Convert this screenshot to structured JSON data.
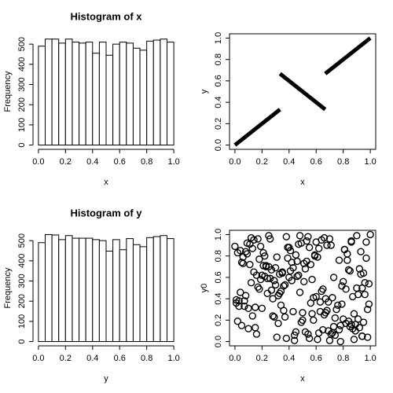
{
  "chart_data": [
    {
      "type": "histogram",
      "title": "Histogram of x",
      "xlabel": "x",
      "ylabel": "Frequency",
      "bins": [
        0,
        0.05,
        0.1,
        0.15,
        0.2,
        0.25,
        0.3,
        0.35,
        0.4,
        0.45,
        0.5,
        0.55,
        0.6,
        0.65,
        0.7,
        0.75,
        0.8,
        0.85,
        0.9,
        0.95,
        1
      ],
      "counts": [
        490,
        525,
        525,
        505,
        525,
        510,
        505,
        510,
        455,
        510,
        445,
        500,
        510,
        505,
        480,
        470,
        515,
        520,
        525,
        510
      ],
      "xlim": [
        -0.04,
        1.04
      ],
      "ylim": [
        -21.2,
        551.2
      ],
      "xticks": [
        {
          "value": 0,
          "label": "0.0"
        },
        0.2,
        0.4,
        0.6,
        0.8,
        {
          "value": 1,
          "label": "1.0"
        }
      ],
      "yticks": [
        0,
        100,
        200,
        300,
        400,
        500
      ],
      "color": "#ffffff"
    },
    {
      "type": "line",
      "xlabel": "x",
      "ylabel": "y",
      "x": [
        0,
        0.333,
        null,
        0.333,
        0.667,
        null,
        0.667,
        1
      ],
      "y": [
        0,
        0.333,
        null,
        0.667,
        0.333,
        null,
        0.667,
        1
      ],
      "xlim": [
        -0.04,
        1.04
      ],
      "ylim": [
        -0.04,
        1.04
      ],
      "xticks": [
        {
          "value": 0,
          "label": "0.0"
        },
        0.2,
        0.4,
        0.6,
        0.8,
        {
          "value": 1,
          "label": "1.0"
        }
      ],
      "yticks": [
        {
          "value": 0,
          "label": "0.0"
        },
        0.2,
        0.4,
        0.6,
        0.8,
        {
          "value": 1,
          "label": "1.0"
        }
      ],
      "color": "#000000"
    },
    {
      "type": "histogram",
      "title": "Histogram of y",
      "xlabel": "y",
      "ylabel": "Frequency",
      "bins": [
        0,
        0.05,
        0.1,
        0.15,
        0.2,
        0.25,
        0.3,
        0.35,
        0.4,
        0.45,
        0.5,
        0.55,
        0.6,
        0.65,
        0.7,
        0.75,
        0.8,
        0.85,
        0.9,
        0.95,
        1
      ],
      "counts": [
        490,
        530,
        528,
        505,
        525,
        512,
        512,
        512,
        505,
        500,
        448,
        505,
        455,
        510,
        480,
        470,
        515,
        520,
        525,
        510
      ],
      "xlim": [
        -0.04,
        1.04
      ],
      "ylim": [
        -21.2,
        551.2
      ],
      "xticks": [
        {
          "value": 0,
          "label": "0.0"
        },
        0.2,
        0.4,
        0.6,
        0.8,
        {
          "value": 1,
          "label": "1.0"
        }
      ],
      "yticks": [
        0,
        100,
        200,
        300,
        400,
        500
      ],
      "color": "#ffffff"
    },
    {
      "type": "scatter",
      "xlabel": "x",
      "ylabel": "y0",
      "x": [
        0.12,
        0.87,
        0.45,
        0.03,
        0.66,
        0.31,
        0.92,
        0.58,
        0.19,
        0.74,
        0.4,
        0.05,
        0.83,
        0.27,
        0.61,
        0.97,
        0.36,
        0.14,
        0.52,
        0.79,
        0.08,
        0.69,
        0.23,
        0.95,
        0.48,
        0.33,
        0.71,
        0.16,
        0.88,
        0.55,
        0.01,
        0.42,
        0.77,
        0.29,
        0.64,
        0.1,
        0.9,
        0.5,
        0.21,
        0.85,
        0.38,
        0.6,
        0.06,
        0.73,
        0.47,
        0.99,
        0.25,
        0.57,
        0.13,
        0.81,
        0.34,
        0.68,
        0.02,
        0.93,
        0.44,
        0.18,
        0.76,
        0.54,
        0.3,
        0.89,
        0.11,
        0.63,
        0.41,
        0.96,
        0.22,
        0.7,
        0.49,
        0.07,
        0.84,
        0.37,
        0.59,
        0.15,
        0.8,
        0.26,
        0.98,
        0.46,
        0.04,
        0.72,
        0.35,
        0.62,
        0.91,
        0.17,
        0.53,
        0.28,
        0.86,
        0.43,
        0.09,
        0.67,
        0.24,
        0.94,
        0.51,
        0.32,
        0.78,
        0.0,
        0.56,
        0.2,
        0.82,
        0.39,
        0.65,
        1.0,
        0.57,
        0.21,
        0.94,
        0.4,
        0.08,
        0.73,
        0.32,
        0.86,
        0.15,
        0.61,
        0.99,
        0.45,
        0.27,
        0.8,
        0.04,
        0.67,
        0.38,
        0.92,
        0.19,
        0.53,
        0.75,
        0.11,
        0.48,
        0.88,
        0.3,
        0.63,
        0.02,
        0.84,
        0.36,
        0.7,
        0.16,
        0.95,
        0.43,
        0.59,
        0.24,
        0.78,
        0.06,
        0.51,
        0.9,
        0.34,
        0.65,
        0.13,
        0.82,
        0.47,
        0.28,
        0.97,
        0.55,
        0.09,
        0.72,
        0.41,
        0.85,
        0.26,
        0.6,
        0.03,
        0.77,
        0.44,
        0.18,
        0.93,
        0.5,
        0.35,
        0.69,
        0.12,
        0.87,
        0.23,
        0.58,
        0.96,
        0.39,
        0.07,
        0.74,
        0.31,
        0.64,
        0.14,
        0.89,
        0.46,
        0.01,
        0.81,
        0.29,
        0.56,
        0.98,
        0.37,
        0.71,
        0.2,
        0.52,
        0.1,
        0.83,
        0.42,
        0.66,
        0.25,
        0.91,
        0.05,
        0.62,
        0.33,
        0.79,
        0.17,
        0.49,
        0.94,
        0.22,
        0.68,
        0.54,
        0.86
      ],
      "y": [
        0.55,
        0.12,
        0.81,
        0.33,
        0.97,
        0.04,
        0.68,
        0.41,
        0.89,
        0.22,
        0.6,
        0.15,
        0.76,
        0.48,
        0.02,
        0.93,
        0.29,
        0.65,
        0.09,
        0.52,
        0.84,
        0.37,
        0.71,
        0.18,
        0.99,
        0.45,
        0.07,
        0.62,
        0.26,
        0.88,
        0.39,
        0.74,
        0.11,
        0.57,
        0.95,
        0.31,
        0.5,
        0.2,
        0.83,
        0.66,
        0.03,
        0.42,
        0.79,
        0.14,
        0.91,
        0.35,
        0.7,
        0.58,
        0.24,
        0.86,
        0.47,
        0.9,
        0.19,
        0.63,
        0.06,
        0.77,
        0.34,
        0.98,
        0.53,
        0.1,
        0.72,
        0.28,
        0.85,
        0.44,
        0.61,
        0.01,
        0.92,
        0.38,
        0.67,
        0.23,
        0.8,
        0.13,
        0.56,
        0.96,
        0.3,
        0.75,
        0.46,
        0.08,
        0.64,
        0.87,
        0.21,
        0.51,
        0.94,
        0.4,
        0.16,
        0.69,
        0.82,
        0.27,
        0.59,
        0.05,
        0.73,
        0.43,
        0.0,
        0.89,
        0.36,
        0.62,
        0.17,
        0.78,
        0.49,
        1.0,
        0.26,
        0.71,
        0.05,
        0.88,
        0.43,
        0.6,
        0.17,
        0.94,
        0.32,
        0.79,
        0.54,
        0.09,
        0.67,
        0.21,
        0.85,
        0.4,
        0.98,
        0.13,
        0.58,
        0.75,
        0.3,
        0.91,
        0.46,
        0.02,
        0.69,
        0.37,
        0.83,
        0.19,
        0.52,
        0.96,
        0.07,
        0.64,
        0.28,
        0.81,
        0.45,
        0.15,
        0.73,
        0.56,
        0.99,
        0.34,
        0.11,
        0.87,
        0.49,
        0.62,
        0.24,
        0.78,
        0.03,
        0.92,
        0.41,
        0.66,
        0.14,
        0.59,
        0.93,
        0.38,
        0.76,
        0.01,
        0.49,
        0.84,
        0.27,
        0.65,
        0.1,
        0.97,
        0.42,
        0.7,
        0.2,
        0.55,
        0.88,
        0.33,
        0.06,
        0.79,
        0.47,
        0.95,
        0.16,
        0.61,
        0.36,
        0.86,
        0.23,
        0.72,
        0.04,
        0.53,
        0.9,
        0.31,
        0.68,
        0.12,
        0.82,
        0.57,
        0.25,
        0.99,
        0.44,
        0.74,
        0.08,
        0.63,
        0.35,
        0.96,
        0.18,
        0.5,
        0.8,
        0.29,
        0.07,
        0.93
      ],
      "xlim": [
        -0.04,
        1.04
      ],
      "ylim": [
        -0.04,
        1.04
      ],
      "xticks": [
        {
          "value": 0,
          "label": "0.0"
        },
        0.2,
        0.4,
        0.6,
        0.8,
        {
          "value": 1,
          "label": "1.0"
        }
      ],
      "yticks": [
        {
          "value": 0,
          "label": "0.0"
        },
        0.2,
        0.4,
        0.6,
        0.8,
        {
          "value": 1,
          "label": "1.0"
        }
      ],
      "color": "#000000"
    }
  ]
}
